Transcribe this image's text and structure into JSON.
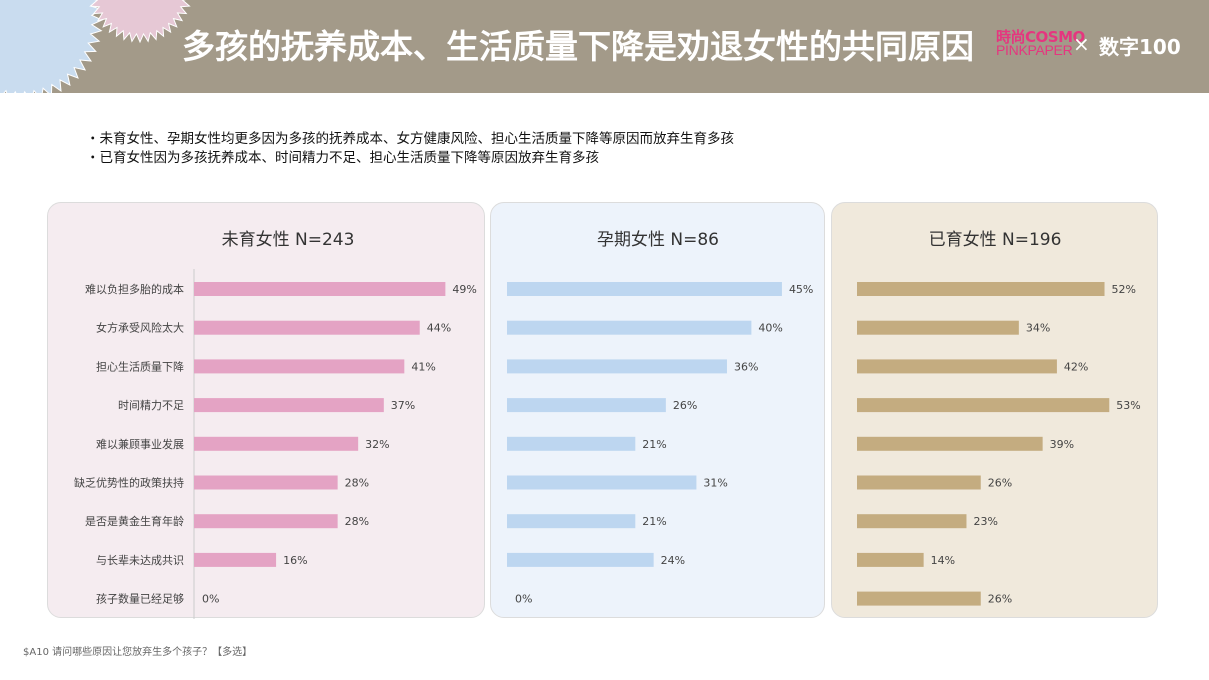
{
  "header": {
    "title": "多孩的抚养成本、生活质量下降是劝退女性的共同原因",
    "brand_cosmo": "時尚COSMO",
    "brand_pinkpaper": "PINKPAPER",
    "brand_separator": "×",
    "brand_partner": "数字100"
  },
  "bullets": [
    "・未育女性、孕期女性均更多因为多孩的抚养成本、女方健康风险、担心生活质量下降等原因而放弃生育多孩",
    "・已育女性因为多孩抚养成本、时间精力不足、担心生活质量下降等原因放弃生育多孩"
  ],
  "footnote": "$A10 请问哪些原因让您放弃生多个孩子？【多选】",
  "colors": {
    "header_bg": "#a39a89",
    "pink_bar": "#e4a3c4",
    "blue_bar": "#bdd6f0",
    "tan_bar": "#c4ac80",
    "pink_panel": "#f5ecf0",
    "blue_panel": "#edf3fb",
    "tan_panel": "#f0e9dc"
  },
  "chart_data": [
    {
      "type": "bar",
      "orientation": "horizontal",
      "title": "未育女性 N=243",
      "categories": [
        "难以负担多胎的成本",
        "女方承受风险太大",
        "担心生活质量下降",
        "时间精力不足",
        "难以兼顾事业发展",
        "缺乏优势性的政策扶持",
        "是否是黄金生育年龄",
        "与长辈未达成共识",
        "孩子数量已经足够"
      ],
      "values": [
        49,
        44,
        41,
        37,
        32,
        28,
        28,
        16,
        0
      ],
      "labels": [
        "49%",
        "44%",
        "41%",
        "37%",
        "32%",
        "28%",
        "28%",
        "16%",
        "0%"
      ],
      "unit": "%",
      "color": "#e4a3c4"
    },
    {
      "type": "bar",
      "orientation": "horizontal",
      "title": "孕期女性 N=86",
      "categories": [
        "难以负担多胎的成本",
        "女方承受风险太大",
        "担心生活质量下降",
        "时间精力不足",
        "难以兼顾事业发展",
        "缺乏优势性的政策扶持",
        "是否是黄金生育年龄",
        "与长辈未达成共识",
        "孩子数量已经足够"
      ],
      "values": [
        45,
        40,
        36,
        26,
        21,
        31,
        21,
        24,
        0
      ],
      "labels": [
        "45%",
        "40%",
        "36%",
        "26%",
        "21%",
        "31%",
        "21%",
        "24%",
        "0%"
      ],
      "unit": "%",
      "color": "#bdd6f0"
    },
    {
      "type": "bar",
      "orientation": "horizontal",
      "title": "已育女性 N=196",
      "categories": [
        "难以负担多胎的成本",
        "女方承受风险太大",
        "担心生活质量下降",
        "时间精力不足",
        "难以兼顾事业发展",
        "缺乏优势性的政策扶持",
        "是否是黄金生育年龄",
        "与长辈未达成共识",
        "孩子数量已经足够"
      ],
      "values": [
        52,
        34,
        42,
        53,
        39,
        26,
        23,
        14,
        26
      ],
      "labels": [
        "52%",
        "34%",
        "42%",
        "53%",
        "39%",
        "26%",
        "23%",
        "14%",
        "26%"
      ],
      "unit": "%",
      "color": "#c4ac80"
    }
  ]
}
